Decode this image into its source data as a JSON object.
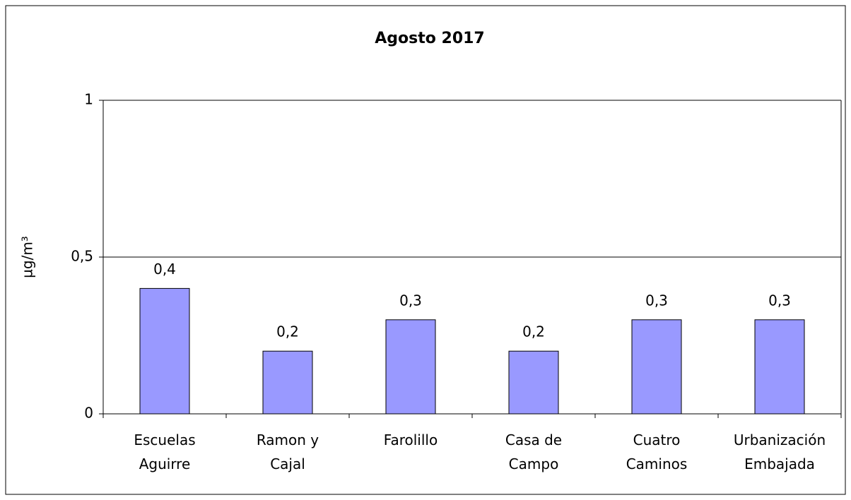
{
  "chart_data": {
    "type": "bar",
    "title": "Agosto 2017",
    "y_label": "µg/m³",
    "categories": [
      "Escuelas\nAguirre",
      "Ramon y\nCajal",
      "Farolillo",
      "Casa de\nCampo",
      "Cuatro\nCaminos",
      "Urbanización\nEmbajada"
    ],
    "values": [
      0.4,
      0.2,
      0.3,
      0.2,
      0.3,
      0.3
    ],
    "value_labels": [
      "0,4",
      "0,2",
      "0,3",
      "0,2",
      "0,3",
      "0,3"
    ],
    "color": "#9999ff",
    "ylim": [
      0,
      1
    ],
    "yticks": [
      0,
      {
        "value": 0.5,
        "label": "0,5"
      },
      1
    ],
    "grid": true
  }
}
